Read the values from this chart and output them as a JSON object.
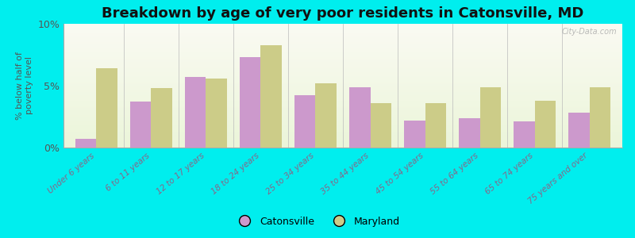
{
  "title": "Breakdown by age of very poor residents in Catonsville, MD",
  "ylabel": "% below half of\npoverty level",
  "categories": [
    "Under 6 years",
    "6 to 11 years",
    "12 to 17 years",
    "18 to 24 years",
    "25 to 34 years",
    "35 to 44 years",
    "45 to 54 years",
    "55 to 64 years",
    "65 to 74 years",
    "75 years and over"
  ],
  "catonsville": [
    0.7,
    3.7,
    5.7,
    7.3,
    4.2,
    4.9,
    2.2,
    2.4,
    2.1,
    2.8
  ],
  "maryland": [
    6.4,
    4.8,
    5.6,
    8.3,
    5.2,
    3.6,
    3.6,
    4.9,
    3.8,
    4.9
  ],
  "catonsville_color": "#cc99cc",
  "maryland_color": "#cccc88",
  "background_outer": "#00eeee",
  "ylim": [
    0,
    10
  ],
  "yticks": [
    0,
    5,
    10
  ],
  "ytick_labels": [
    "0%",
    "5%",
    "10%"
  ],
  "bar_width": 0.38,
  "title_fontsize": 13,
  "legend_labels": [
    "Catonsville",
    "Maryland"
  ],
  "watermark": "City-Data.com"
}
